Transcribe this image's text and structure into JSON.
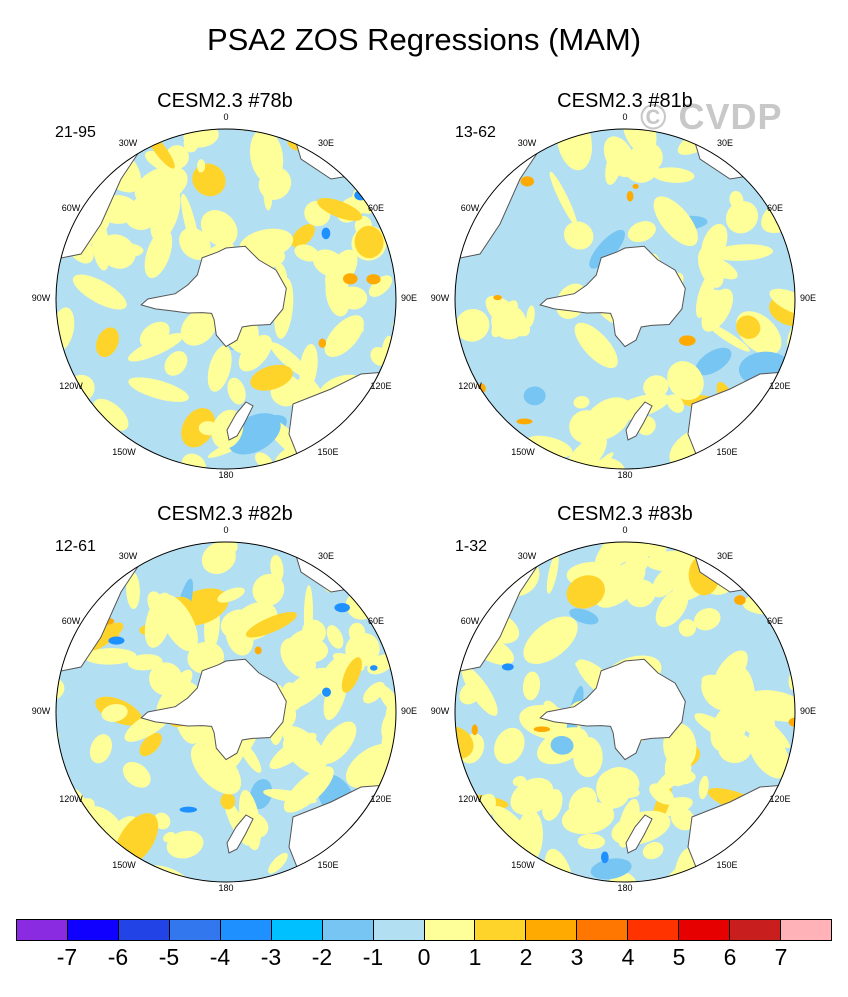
{
  "title": "PSA2 ZOS Regressions (MAM)",
  "watermark": "© CVDP",
  "colors": {
    "levels": [
      "#8a2be2",
      "#1000ff",
      "#2244e6",
      "#3377ee",
      "#1e90ff",
      "#00c0ff",
      "#76c5f2",
      "#b3dff3",
      "#ffff99",
      "#ffd42a",
      "#ffaa00",
      "#ff7700",
      "#ff3300",
      "#e60000",
      "#c81e1e",
      "#ffb3b8"
    ],
    "land": "#ffffff",
    "coast": "#555555"
  },
  "colorbar": {
    "ticks": [
      "-7",
      "-6",
      "-5",
      "-4",
      "-3",
      "-2",
      "-1",
      "0",
      "1",
      "2",
      "3",
      "4",
      "5",
      "6",
      "7"
    ]
  },
  "longitude_labels": [
    "0",
    "30E",
    "60E",
    "90E",
    "120E",
    "150E",
    "180",
    "150W",
    "120W",
    "90W",
    "60W",
    "30W"
  ],
  "panels": [
    {
      "title": "CESM2.3 #78b",
      "period": "21-95"
    },
    {
      "title": "CESM2.3 #81b",
      "period": "13-62"
    },
    {
      "title": "CESM2.3 #82b",
      "period": "12-61"
    },
    {
      "title": "CESM2.3 #83b",
      "period": "1-32"
    }
  ]
}
